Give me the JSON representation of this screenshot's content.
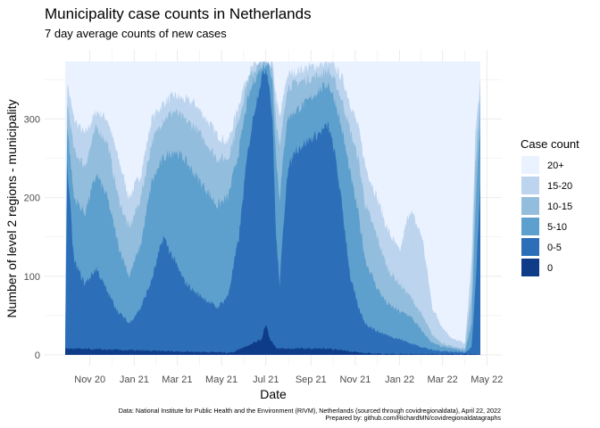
{
  "chart_data": {
    "type": "area",
    "stacked": true,
    "title": "Municipality case counts in Netherlands",
    "subtitle": "7 day average counts of new cases",
    "xlabel": "Date",
    "ylabel": "Number of level 2 regions - municipality",
    "x_ticks": [
      "Nov 20",
      "Jan 21",
      "Mar 21",
      "May 21",
      "Jul 21",
      "Sep 21",
      "Nov 21",
      "Jan 22",
      "Mar 22",
      "May 22"
    ],
    "x_tick_dates": [
      "2020-11-01",
      "2021-01-01",
      "2021-03-01",
      "2021-05-01",
      "2021-07-01",
      "2021-09-01",
      "2021-11-01",
      "2022-01-01",
      "2022-03-01",
      "2022-05-01"
    ],
    "y_ticks": [
      0,
      100,
      200,
      300
    ],
    "ylim": [
      0,
      373
    ],
    "xlim": [
      "2020-09-28",
      "2022-04-22"
    ],
    "legend": {
      "title": "Case count",
      "position": "right",
      "entries": [
        {
          "label": "20+",
          "color": "#eaf2ff"
        },
        {
          "label": "15-20",
          "color": "#bcd4ee"
        },
        {
          "label": "10-15",
          "color": "#93bddc"
        },
        {
          "label": "5-10",
          "color": "#5d9fcd"
        },
        {
          "label": "0-5",
          "color": "#2c6fb8"
        },
        {
          "label": "0",
          "color": "#0f3c88"
        }
      ]
    },
    "caption_line1": "Data: National Institute for Public Health and the Environment (RIVM), Netherlands (sourced through covidregionaldata), April 22, 2022",
    "caption_line2": "Prepared by: github.com/RichardMN/covidregionaldatagraphs",
    "series": [
      {
        "name": "0",
        "color": "#0f3c88",
        "x": [
          "2020-10-01",
          "2021-02-01",
          "2021-05-15",
          "2021-06-25",
          "2021-07-01",
          "2021-07-06",
          "2021-07-15",
          "2021-08-15",
          "2021-09-15",
          "2021-10-15",
          "2021-11-15",
          "2022-01-01",
          "2022-02-01",
          "2022-03-01",
          "2022-04-22"
        ],
        "y": [
          8,
          5,
          3,
          20,
          40,
          22,
          8,
          8,
          8,
          6,
          2,
          1,
          1,
          1,
          1
        ]
      },
      {
        "name": "0-5",
        "color": "#2c6fb8",
        "x": [
          "2020-09-28",
          "2020-10-01",
          "2020-10-10",
          "2020-10-25",
          "2020-11-10",
          "2020-11-25",
          "2020-12-10",
          "2020-12-25",
          "2021-01-10",
          "2021-01-25",
          "2021-02-10",
          "2021-02-25",
          "2021-03-10",
          "2021-03-25",
          "2021-04-10",
          "2021-04-25",
          "2021-05-10",
          "2021-05-25",
          "2021-06-05",
          "2021-06-15",
          "2021-06-25",
          "2021-07-01",
          "2021-07-05",
          "2021-07-10",
          "2021-07-15",
          "2021-07-20",
          "2021-07-30",
          "2021-08-10",
          "2021-08-25",
          "2021-09-10",
          "2021-09-25",
          "2021-10-05",
          "2021-10-15",
          "2021-10-25",
          "2021-11-05",
          "2021-11-15",
          "2021-12-01",
          "2021-12-15",
          "2022-01-01",
          "2022-01-15",
          "2022-02-01",
          "2022-02-15",
          "2022-03-01",
          "2022-03-15",
          "2022-04-01",
          "2022-04-10",
          "2022-04-15",
          "2022-04-22"
        ],
        "y": [
          10,
          240,
          120,
          90,
          110,
          80,
          55,
          40,
          60,
          95,
          150,
          120,
          95,
          80,
          70,
          60,
          75,
          150,
          250,
          310,
          352,
          365,
          350,
          300,
          150,
          90,
          230,
          260,
          270,
          280,
          292,
          250,
          180,
          100,
          60,
          40,
          30,
          25,
          20,
          15,
          10,
          6,
          5,
          4,
          3,
          10,
          80,
          220
        ]
      },
      {
        "name": "5-10",
        "color": "#5d9fcd",
        "x": [
          "2020-09-28",
          "2020-10-01",
          "2020-10-10",
          "2020-10-25",
          "2020-11-10",
          "2020-11-25",
          "2020-12-10",
          "2020-12-25",
          "2021-01-10",
          "2021-01-25",
          "2021-02-10",
          "2021-02-25",
          "2021-03-10",
          "2021-03-25",
          "2021-04-10",
          "2021-04-25",
          "2021-05-10",
          "2021-05-25",
          "2021-06-05",
          "2021-06-15",
          "2021-06-25",
          "2021-07-01",
          "2021-07-05",
          "2021-07-10",
          "2021-07-15",
          "2021-07-20",
          "2021-07-30",
          "2021-08-10",
          "2021-08-25",
          "2021-09-10",
          "2021-09-25",
          "2021-10-05",
          "2021-10-15",
          "2021-10-25",
          "2021-11-05",
          "2021-11-15",
          "2021-12-01",
          "2021-12-15",
          "2022-01-01",
          "2022-01-15",
          "2022-02-01",
          "2022-02-15",
          "2022-03-01",
          "2022-03-15",
          "2022-04-01",
          "2022-04-10",
          "2022-04-15",
          "2022-04-22"
        ],
        "y": [
          10,
          290,
          200,
          180,
          230,
          200,
          140,
          100,
          140,
          220,
          250,
          260,
          250,
          230,
          210,
          190,
          200,
          260,
          320,
          350,
          365,
          372,
          368,
          350,
          250,
          200,
          300,
          310,
          320,
          335,
          345,
          320,
          280,
          230,
          180,
          120,
          85,
          65,
          55,
          50,
          30,
          15,
          10,
          8,
          5,
          40,
          180,
          300
        ]
      },
      {
        "name": "10-15",
        "color": "#93bddc",
        "x": [
          "2020-09-28",
          "2020-10-01",
          "2020-10-10",
          "2020-10-25",
          "2020-11-10",
          "2020-11-25",
          "2020-12-10",
          "2020-12-25",
          "2021-01-10",
          "2021-01-25",
          "2021-02-10",
          "2021-02-25",
          "2021-03-10",
          "2021-03-25",
          "2021-04-10",
          "2021-04-25",
          "2021-05-10",
          "2021-05-25",
          "2021-06-05",
          "2021-06-15",
          "2021-06-25",
          "2021-07-01",
          "2021-07-05",
          "2021-07-10",
          "2021-07-15",
          "2021-07-20",
          "2021-07-30",
          "2021-08-10",
          "2021-08-25",
          "2021-09-10",
          "2021-09-25",
          "2021-10-05",
          "2021-10-15",
          "2021-10-25",
          "2021-11-05",
          "2021-11-15",
          "2021-12-01",
          "2021-12-15",
          "2022-01-01",
          "2022-01-15",
          "2022-02-01",
          "2022-02-15",
          "2022-03-01",
          "2022-03-15",
          "2022-04-01",
          "2022-04-10",
          "2022-04-15",
          "2022-04-22"
        ],
        "y": [
          10,
          320,
          260,
          240,
          290,
          270,
          200,
          160,
          200,
          270,
          300,
          310,
          300,
          290,
          270,
          250,
          250,
          300,
          345,
          362,
          370,
          372,
          370,
          365,
          300,
          260,
          340,
          345,
          350,
          355,
          362,
          345,
          320,
          285,
          250,
          190,
          150,
          110,
          90,
          75,
          50,
          25,
          15,
          10,
          8,
          80,
          240,
          330
        ]
      },
      {
        "name": "15-20",
        "color": "#bcd4ee",
        "x": [
          "2020-09-28",
          "2020-10-01",
          "2020-10-10",
          "2020-10-25",
          "2020-11-10",
          "2020-11-25",
          "2020-12-10",
          "2020-12-25",
          "2021-01-10",
          "2021-01-25",
          "2021-02-10",
          "2021-02-25",
          "2021-03-10",
          "2021-03-25",
          "2021-04-10",
          "2021-04-25",
          "2021-05-10",
          "2021-05-25",
          "2021-06-05",
          "2021-06-15",
          "2021-06-25",
          "2021-07-01",
          "2021-07-05",
          "2021-07-10",
          "2021-07-15",
          "2021-07-20",
          "2021-07-30",
          "2021-08-10",
          "2021-08-25",
          "2021-09-10",
          "2021-09-25",
          "2021-10-05",
          "2021-10-15",
          "2021-10-25",
          "2021-11-05",
          "2021-11-15",
          "2021-12-01",
          "2021-12-15",
          "2022-01-01",
          "2022-01-15",
          "2022-02-01",
          "2022-02-15",
          "2022-03-01",
          "2022-03-15",
          "2022-04-01",
          "2022-04-10",
          "2022-04-15",
          "2022-04-22"
        ],
        "y": [
          10,
          345,
          300,
          280,
          310,
          300,
          250,
          200,
          230,
          300,
          320,
          330,
          325,
          320,
          300,
          280,
          270,
          320,
          355,
          368,
          372,
          372,
          372,
          370,
          330,
          300,
          355,
          360,
          365,
          368,
          372,
          365,
          350,
          320,
          290,
          240,
          200,
          160,
          130,
          185,
          150,
          60,
          35,
          20,
          15,
          120,
          280,
          348
        ]
      }
    ]
  }
}
